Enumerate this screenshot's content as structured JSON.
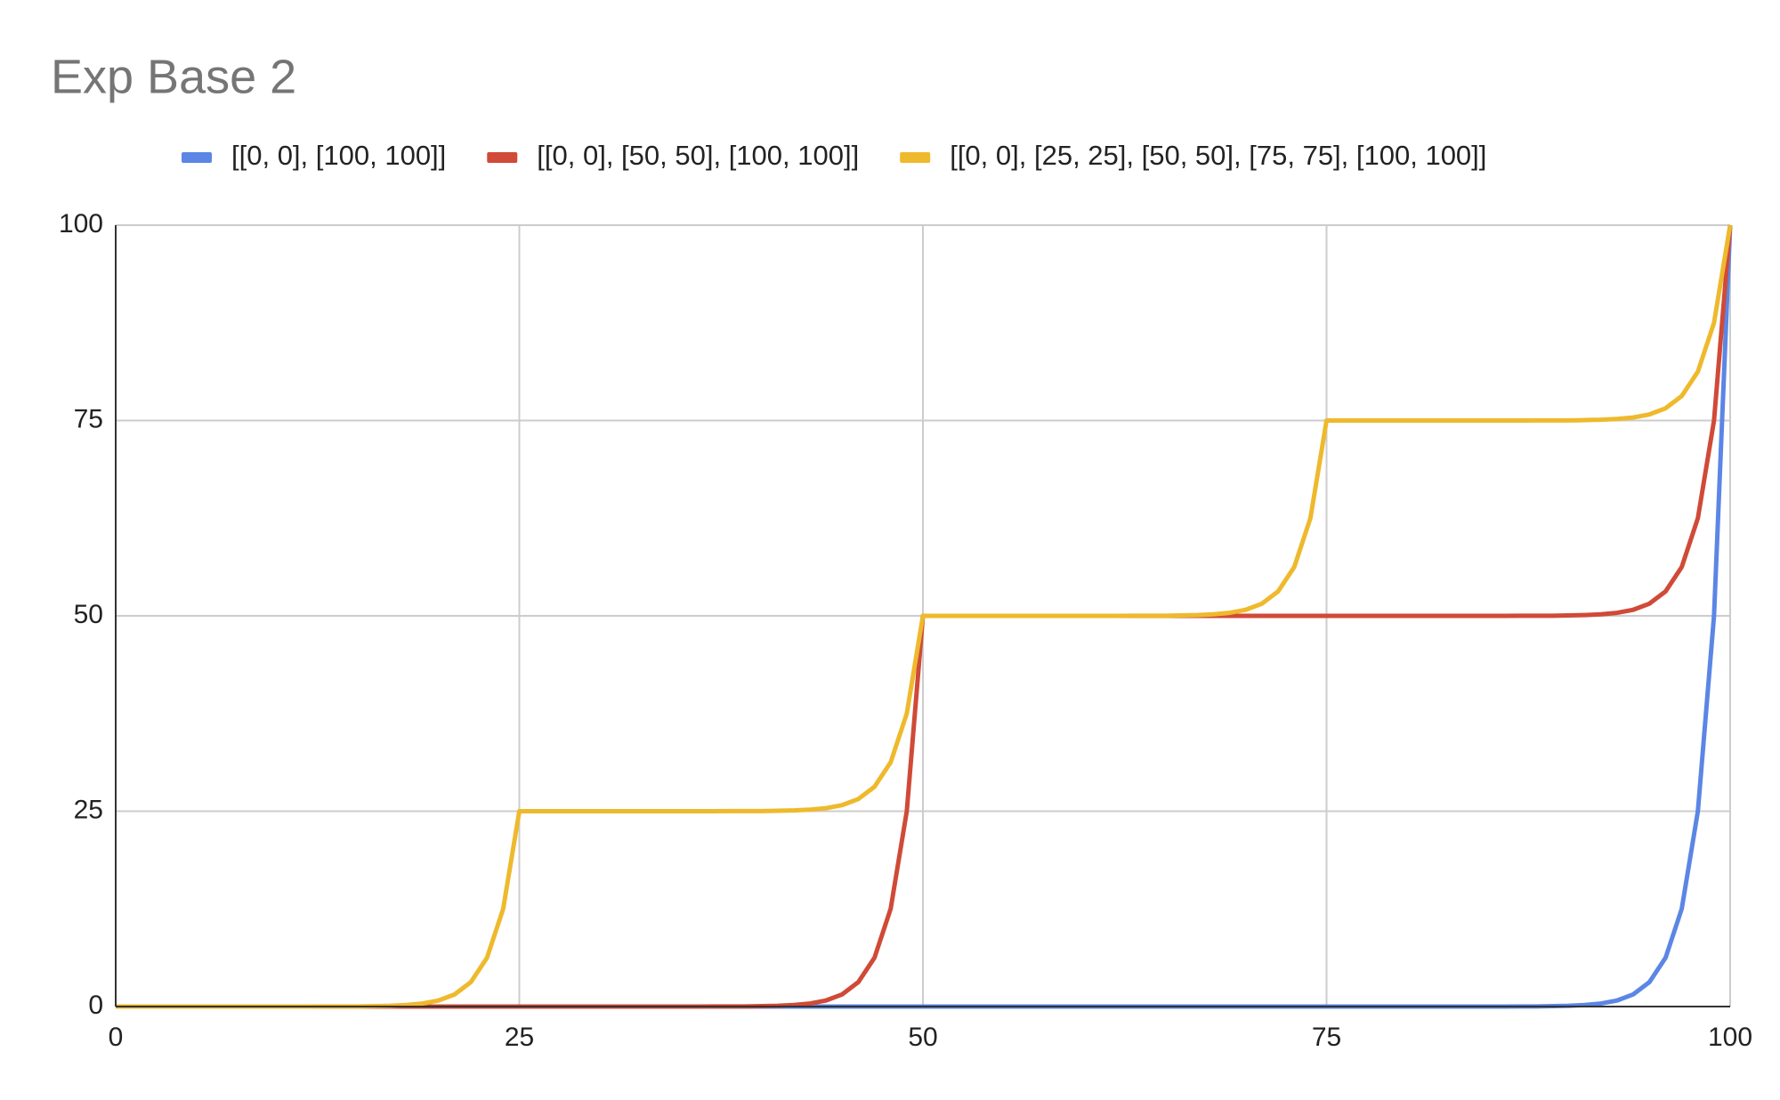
{
  "chart_data": {
    "type": "line",
    "title": "Exp Base 2",
    "x": [
      0,
      1,
      2,
      3,
      4,
      5,
      6,
      7,
      8,
      9,
      10,
      11,
      12,
      13,
      14,
      15,
      16,
      17,
      18,
      19,
      20,
      21,
      22,
      23,
      24,
      25,
      26,
      27,
      28,
      29,
      30,
      31,
      32,
      33,
      34,
      35,
      36,
      37,
      38,
      39,
      40,
      41,
      42,
      43,
      44,
      45,
      46,
      47,
      48,
      49,
      50,
      51,
      52,
      53,
      54,
      55,
      56,
      57,
      58,
      59,
      60,
      61,
      62,
      63,
      64,
      65,
      66,
      67,
      68,
      69,
      70,
      71,
      72,
      73,
      74,
      75,
      76,
      77,
      78,
      79,
      80,
      81,
      82,
      83,
      84,
      85,
      86,
      87,
      88,
      89,
      90,
      91,
      92,
      93,
      94,
      95,
      96,
      97,
      98,
      99,
      100
    ],
    "series": [
      {
        "name": "[[0, 0], [100, 100]]",
        "color": "#5b86e5",
        "values": [
          0,
          0,
          0,
          0,
          0,
          0,
          0,
          0,
          0,
          0,
          0,
          0,
          0,
          0,
          0,
          0,
          0,
          0,
          0,
          0,
          0,
          0,
          0,
          0,
          0,
          0,
          0,
          0,
          0,
          0,
          0,
          0,
          0,
          0,
          0,
          0,
          0,
          0,
          0,
          0,
          0,
          0,
          0,
          0,
          0,
          0,
          0,
          0,
          0,
          0,
          0,
          0,
          0,
          0,
          0,
          0,
          0,
          0,
          0,
          0,
          0,
          0,
          0,
          0,
          0,
          0,
          0,
          0,
          0,
          0,
          0,
          0,
          0,
          0,
          0,
          0,
          0,
          0,
          0,
          0,
          0,
          0,
          0,
          0,
          0,
          0,
          0,
          0.01,
          0.02,
          0.05,
          0.1,
          0.2,
          0.39,
          0.78,
          1.56,
          3.13,
          6.25,
          12.5,
          25,
          50,
          100
        ]
      },
      {
        "name": "[[0, 0], [50, 50], [100, 100]]",
        "color": "#d04a37",
        "values": [
          0,
          0,
          0,
          0,
          0,
          0,
          0,
          0,
          0,
          0,
          0,
          0,
          0,
          0,
          0,
          0,
          0,
          0,
          0,
          0,
          0,
          0,
          0,
          0,
          0,
          0,
          0,
          0,
          0,
          0,
          0,
          0,
          0,
          0,
          0,
          0,
          0,
          0.01,
          0.01,
          0.02,
          0.05,
          0.1,
          0.2,
          0.39,
          0.78,
          1.56,
          3.13,
          6.25,
          12.5,
          25,
          50,
          50,
          50,
          50,
          50,
          50,
          50,
          50,
          50,
          50,
          50,
          50,
          50,
          50,
          50,
          50,
          50,
          50,
          50,
          50,
          50,
          50,
          50,
          50,
          50,
          50,
          50,
          50,
          50,
          50,
          50,
          50,
          50,
          50,
          50,
          50,
          50,
          50.01,
          50.01,
          50.02,
          50.05,
          50.1,
          50.2,
          50.39,
          50.78,
          51.56,
          53.13,
          56.25,
          62.5,
          75,
          100
        ]
      },
      {
        "name": "[[0, 0], [25, 25], [50, 50], [75, 75], [100, 100]]",
        "color": "#eeb92c",
        "values": [
          0,
          0,
          0,
          0,
          0,
          0,
          0,
          0,
          0,
          0,
          0,
          0,
          0,
          0.01,
          0.01,
          0.02,
          0.05,
          0.1,
          0.2,
          0.39,
          0.78,
          1.56,
          3.13,
          6.25,
          12.5,
          25,
          25,
          25,
          25,
          25,
          25,
          25,
          25,
          25,
          25,
          25,
          25,
          25,
          25.01,
          25.01,
          25.02,
          25.05,
          25.1,
          25.2,
          25.39,
          25.78,
          26.56,
          28.13,
          31.25,
          37.5,
          50,
          50,
          50,
          50,
          50,
          50,
          50,
          50,
          50,
          50,
          50,
          50,
          50,
          50.01,
          50.01,
          50.02,
          50.05,
          50.1,
          50.2,
          50.39,
          50.78,
          51.56,
          53.13,
          56.25,
          62.5,
          75,
          75,
          75,
          75,
          75,
          75,
          75,
          75,
          75,
          75,
          75,
          75,
          75,
          75.01,
          75.01,
          75.02,
          75.05,
          75.1,
          75.2,
          75.39,
          75.78,
          76.56,
          78.13,
          81.25,
          87.5,
          100
        ]
      }
    ],
    "xlim": [
      0,
      100
    ],
    "xticks": [
      0,
      25,
      50,
      75,
      100
    ],
    "ylim": [
      0,
      100
    ],
    "yticks": [
      0,
      25,
      50,
      75,
      100
    ],
    "grid": true,
    "legend": "top"
  }
}
